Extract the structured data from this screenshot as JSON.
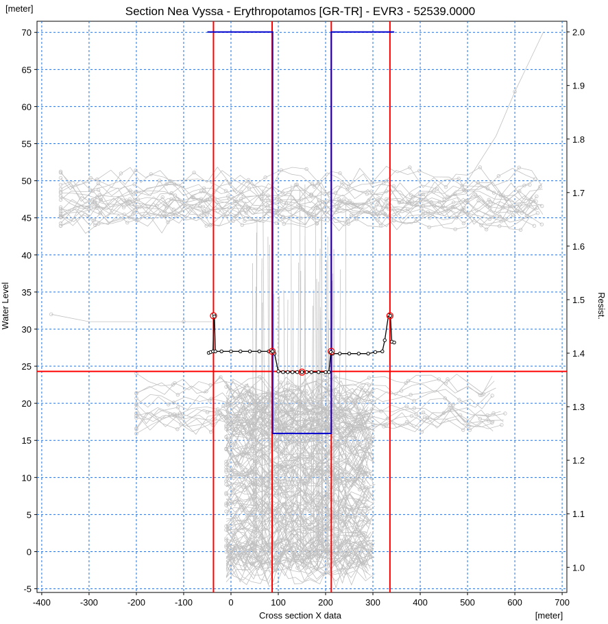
{
  "chart_data": {
    "type": "line",
    "title": "Section Nea Vyssa - Erythropotamos [GR-TR] - EVR3 - 52539.0000",
    "xlabel": "Cross section X data",
    "ylabel": "Water Level",
    "y2label": "Resist.",
    "xunit": "[meter]",
    "yunit": "[meter]",
    "xlim": [
      -410,
      710
    ],
    "ylim": [
      -5.5,
      71.5
    ],
    "y2lim": [
      0.953,
      2.02
    ],
    "grid": true,
    "xticks": [
      -400,
      -300,
      -200,
      -100,
      0,
      100,
      200,
      300,
      400,
      500,
      600,
      700
    ],
    "yticks": [
      -5,
      0,
      5,
      10,
      15,
      20,
      25,
      30,
      35,
      40,
      45,
      50,
      55,
      60,
      65,
      70
    ],
    "y2ticks": [
      1.0,
      1.1,
      1.2,
      1.3,
      1.4,
      1.5,
      1.6,
      1.7,
      1.8,
      1.9,
      2.0
    ],
    "colors": {
      "profile": "#000000",
      "markers": "#ff0000",
      "resistance": "#0000cc",
      "background_sections": "#c0c0c0",
      "grid": "#1f6fd6"
    },
    "series": [
      {
        "role": "selected-cross-section",
        "x": [
          -47,
          -43,
          -38,
          -36,
          -35,
          -33,
          -20,
          0,
          20,
          40,
          60,
          80,
          88,
          92,
          100,
          110,
          120,
          130,
          140,
          150,
          160,
          170,
          185,
          200,
          207,
          211,
          215,
          230,
          250,
          270,
          290,
          305,
          320,
          325,
          333,
          337,
          340,
          345
        ],
        "y": [
          26.8,
          26.9,
          27.0,
          32.0,
          31.7,
          27.0,
          27.0,
          27.0,
          27.0,
          27.0,
          27.0,
          27.0,
          27.0,
          26.7,
          24.3,
          24.2,
          24.2,
          24.2,
          24.2,
          24.2,
          24.2,
          24.2,
          24.2,
          24.2,
          24.2,
          26.9,
          26.7,
          26.7,
          26.7,
          26.7,
          26.7,
          26.9,
          27.0,
          28.5,
          31.9,
          31.8,
          28.3,
          28.2
        ]
      },
      {
        "role": "resistance-factor",
        "x": [
          -50,
          88,
          88,
          212,
          212,
          345
        ],
        "y2": [
          2.0,
          2.0,
          1.25,
          1.25,
          2.0,
          2.0
        ]
      }
    ],
    "markers": {
      "vertical_x": [
        -37,
        87,
        212,
        336
      ],
      "horizontal_y": [
        24.3
      ],
      "circles": [
        [
          -37,
          31.8
        ],
        [
          87,
          27.0
        ],
        [
          212,
          27.0
        ],
        [
          336,
          31.8
        ],
        [
          150,
          24.2
        ]
      ]
    }
  }
}
